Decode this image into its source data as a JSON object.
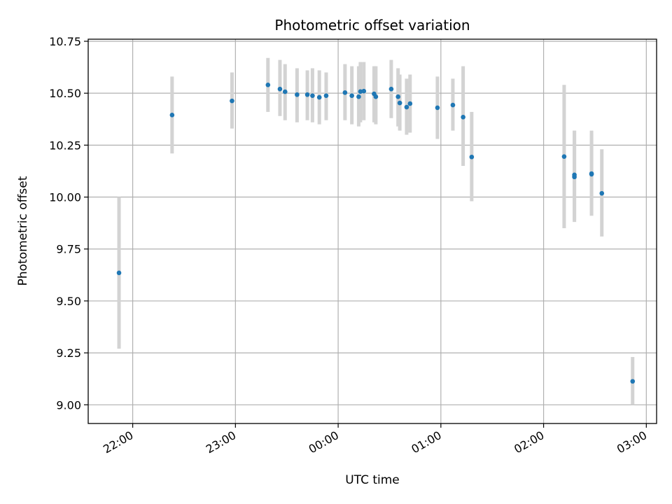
{
  "chart_data": {
    "type": "scatter",
    "title": "Photometric offset variation",
    "xlabel": "UTC time",
    "ylabel": "Photometric offset",
    "x_axis": {
      "kind": "time",
      "min": "21:34",
      "max": "03:06",
      "ticks": [
        "22:00",
        "23:00",
        "00:00",
        "01:00",
        "02:00",
        "03:00"
      ]
    },
    "y_axis": {
      "min": 8.91,
      "max": 10.76,
      "ticks": [
        "9.00",
        "9.25",
        "9.50",
        "9.75",
        "10.00",
        "10.25",
        "10.50",
        "10.75"
      ]
    },
    "grid": true,
    "colors": {
      "point": "#1f77b4",
      "errorbar": "#d3d3d3",
      "grid": "#b0b0b0"
    },
    "points": [
      {
        "x": "21:52",
        "y": 9.635,
        "lo": 9.27,
        "hi": 10.0
      },
      {
        "x": "22:23",
        "y": 10.395,
        "lo": 10.21,
        "hi": 10.58
      },
      {
        "x": "22:58",
        "y": 10.463,
        "lo": 10.33,
        "hi": 10.6
      },
      {
        "x": "23:19",
        "y": 10.54,
        "lo": 10.41,
        "hi": 10.67
      },
      {
        "x": "23:26",
        "y": 10.52,
        "lo": 10.39,
        "hi": 10.66
      },
      {
        "x": "23:29",
        "y": 10.507,
        "lo": 10.37,
        "hi": 10.64
      },
      {
        "x": "23:36",
        "y": 10.493,
        "lo": 10.36,
        "hi": 10.62
      },
      {
        "x": "23:42",
        "y": 10.493,
        "lo": 10.37,
        "hi": 10.61
      },
      {
        "x": "23:45",
        "y": 10.488,
        "lo": 10.36,
        "hi": 10.62
      },
      {
        "x": "23:49",
        "y": 10.48,
        "lo": 10.35,
        "hi": 10.61
      },
      {
        "x": "23:53",
        "y": 10.488,
        "lo": 10.37,
        "hi": 10.6
      },
      {
        "x": "00:04",
        "y": 10.503,
        "lo": 10.37,
        "hi": 10.64
      },
      {
        "x": "00:08",
        "y": 10.488,
        "lo": 10.35,
        "hi": 10.63
      },
      {
        "x": "00:12",
        "y": 10.483,
        "lo": 10.34,
        "hi": 10.63
      },
      {
        "x": "00:13",
        "y": 10.508,
        "lo": 10.36,
        "hi": 10.65
      },
      {
        "x": "00:15",
        "y": 10.51,
        "lo": 10.37,
        "hi": 10.65
      },
      {
        "x": "00:21",
        "y": 10.497,
        "lo": 10.36,
        "hi": 10.63
      },
      {
        "x": "00:22",
        "y": 10.483,
        "lo": 10.35,
        "hi": 10.63
      },
      {
        "x": "00:31",
        "y": 10.52,
        "lo": 10.38,
        "hi": 10.66
      },
      {
        "x": "00:35",
        "y": 10.483,
        "lo": 10.34,
        "hi": 10.62
      },
      {
        "x": "00:36",
        "y": 10.453,
        "lo": 10.32,
        "hi": 10.59
      },
      {
        "x": "00:40",
        "y": 10.433,
        "lo": 10.3,
        "hi": 10.57
      },
      {
        "x": "00:42",
        "y": 10.45,
        "lo": 10.31,
        "hi": 10.59
      },
      {
        "x": "00:58",
        "y": 10.43,
        "lo": 10.28,
        "hi": 10.58
      },
      {
        "x": "01:07",
        "y": 10.443,
        "lo": 10.32,
        "hi": 10.57
      },
      {
        "x": "01:13",
        "y": 10.385,
        "lo": 10.15,
        "hi": 10.63
      },
      {
        "x": "01:18",
        "y": 10.193,
        "lo": 9.98,
        "hi": 10.41
      },
      {
        "x": "02:12",
        "y": 10.195,
        "lo": 9.85,
        "hi": 10.54
      },
      {
        "x": "02:18",
        "y": 10.097,
        "lo": 9.88,
        "hi": 10.32
      },
      {
        "x": "02:18",
        "y": 10.107,
        "lo": 9.89,
        "hi": 10.32
      },
      {
        "x": "02:28",
        "y": 10.113,
        "lo": 9.91,
        "hi": 10.32
      },
      {
        "x": "02:28",
        "y": 10.11,
        "lo": 9.92,
        "hi": 10.3
      },
      {
        "x": "02:34",
        "y": 10.018,
        "lo": 9.81,
        "hi": 10.23
      },
      {
        "x": "02:52",
        "y": 9.113,
        "lo": 9.0,
        "hi": 9.23
      }
    ]
  }
}
